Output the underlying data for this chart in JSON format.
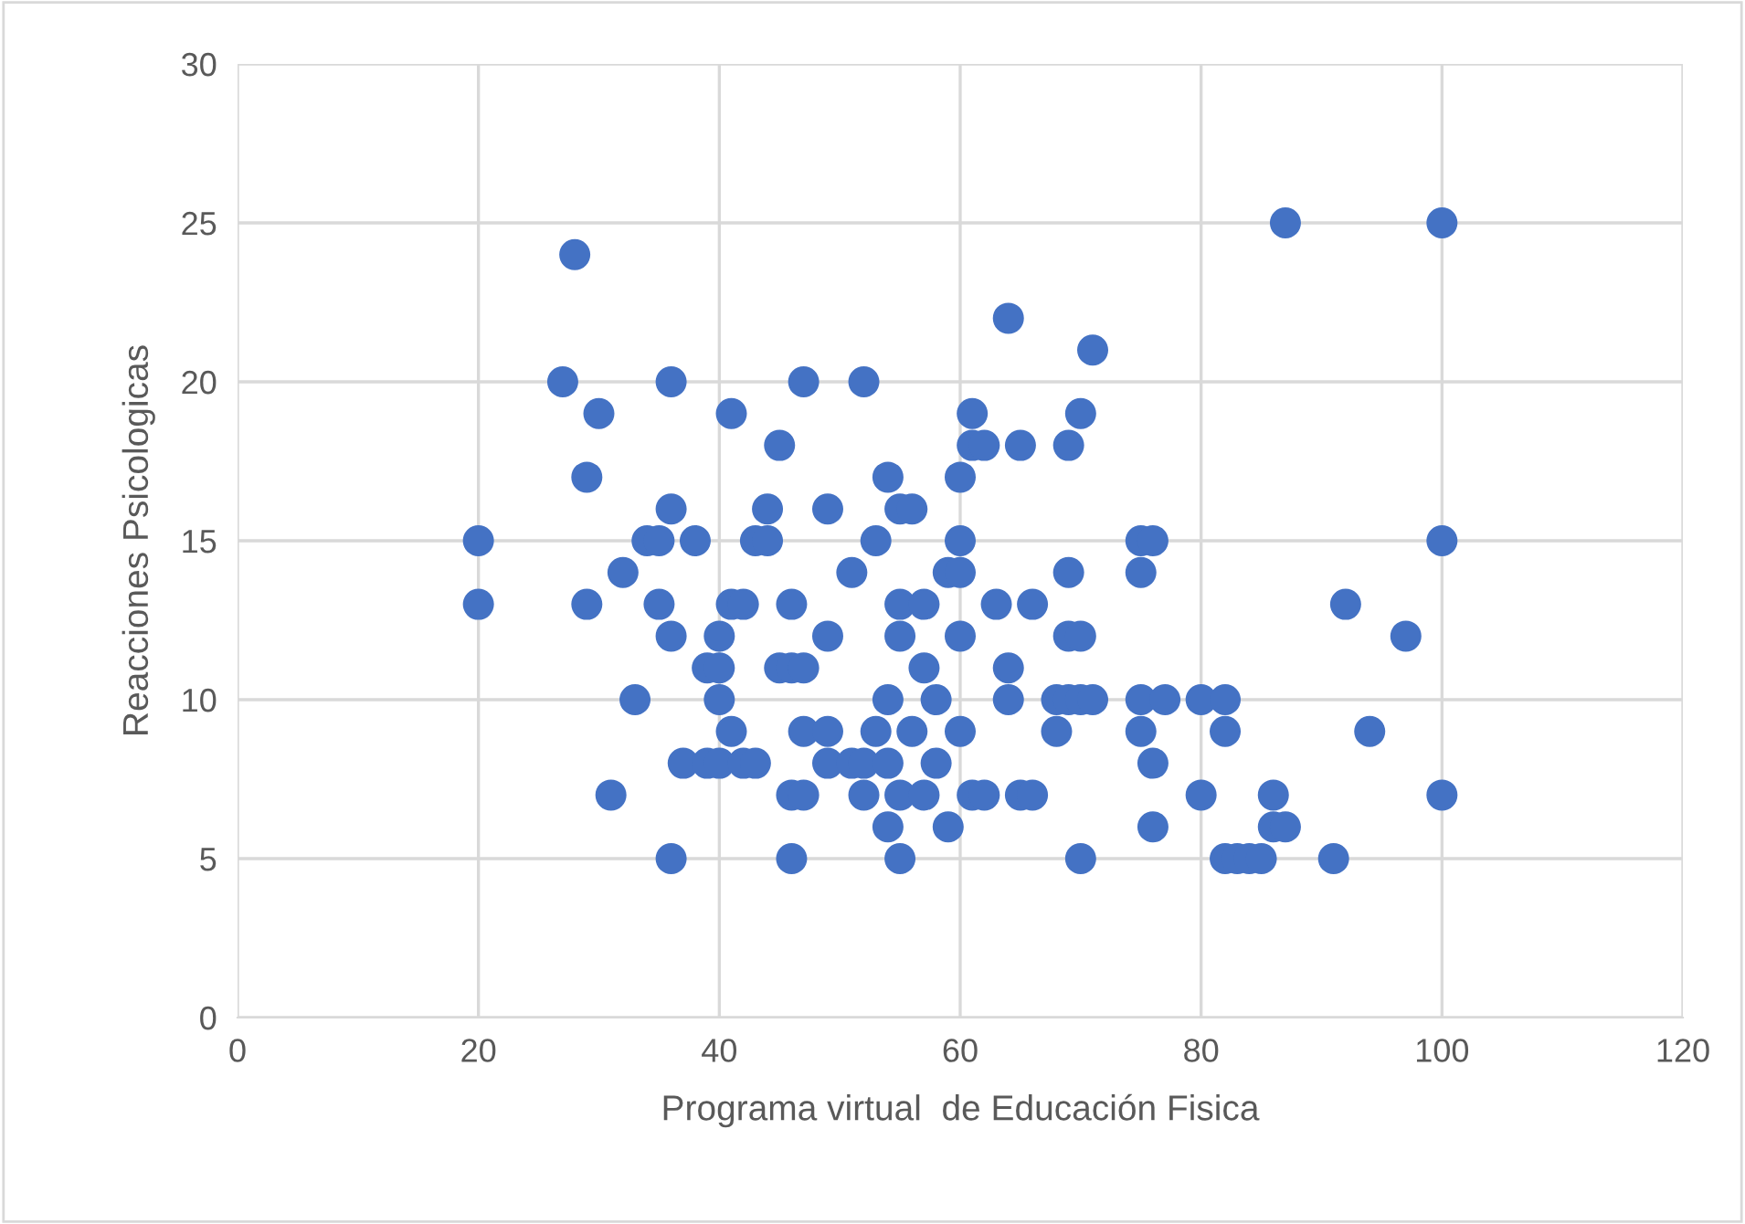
{
  "chart_data": {
    "type": "scatter",
    "xlabel": "Programa virtual  de Educación Fisica",
    "ylabel": "Reacciones Psicologicas",
    "x": [
      20,
      20,
      27,
      28,
      29,
      29,
      30,
      31,
      32,
      33,
      34,
      35,
      35,
      36,
      36,
      36,
      36,
      37,
      38,
      39,
      39,
      40,
      40,
      40,
      40,
      41,
      41,
      41,
      42,
      42,
      43,
      43,
      44,
      44,
      45,
      45,
      46,
      46,
      46,
      46,
      47,
      47,
      47,
      47,
      49,
      49,
      49,
      49,
      51,
      51,
      52,
      52,
      52,
      53,
      53,
      54,
      54,
      54,
      54,
      55,
      55,
      55,
      55,
      55,
      56,
      56,
      57,
      57,
      57,
      58,
      58,
      59,
      59,
      60,
      60,
      60,
      60,
      60,
      61,
      61,
      61,
      62,
      62,
      63,
      64,
      64,
      64,
      65,
      65,
      66,
      66,
      68,
      68,
      69,
      69,
      69,
      69,
      70,
      70,
      70,
      70,
      71,
      71,
      75,
      75,
      75,
      75,
      76,
      76,
      76,
      77,
      80,
      80,
      82,
      82,
      82,
      83,
      84,
      85,
      86,
      86,
      87,
      87,
      91,
      92,
      94,
      97,
      100,
      100,
      100
    ],
    "values": [
      15,
      13,
      20,
      24,
      17,
      13,
      19,
      7,
      14,
      10,
      15,
      15,
      13,
      20,
      16,
      12,
      5,
      8,
      15,
      11,
      8,
      12,
      11,
      10,
      8,
      19,
      13,
      9,
      13,
      8,
      15,
      8,
      16,
      15,
      18,
      11,
      13,
      11,
      7,
      5,
      20,
      11,
      9,
      7,
      16,
      12,
      9,
      8,
      14,
      8,
      20,
      8,
      7,
      15,
      9,
      17,
      10,
      8,
      6,
      16,
      13,
      12,
      7,
      5,
      16,
      9,
      13,
      11,
      7,
      10,
      8,
      14,
      6,
      17,
      15,
      14,
      12,
      9,
      19,
      18,
      7,
      18,
      7,
      13,
      22,
      11,
      10,
      18,
      7,
      13,
      7,
      10,
      9,
      18,
      14,
      12,
      10,
      19,
      12,
      10,
      5,
      21,
      10,
      15,
      14,
      10,
      9,
      15,
      8,
      6,
      10,
      10,
      7,
      10,
      9,
      5,
      5,
      5,
      5,
      7,
      6,
      6,
      25,
      5,
      13,
      9,
      12,
      25,
      15,
      7
    ],
    "color": "#4472c4",
    "marker": "circle",
    "xlim": [
      0,
      120
    ],
    "xticks": [
      0,
      20,
      40,
      60,
      80,
      100,
      120
    ],
    "ylim": [
      0,
      30
    ],
    "yticks": [
      0,
      5,
      10,
      15,
      20,
      25,
      30
    ],
    "grid": true,
    "legend": false
  }
}
